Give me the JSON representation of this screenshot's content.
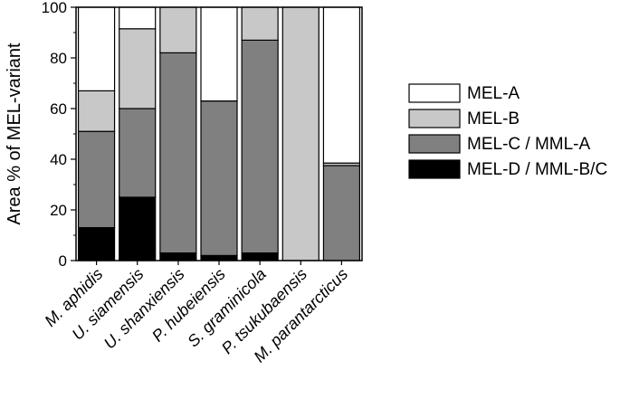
{
  "chart_data": {
    "type": "stacked_bar",
    "title": "",
    "xlabel": "",
    "ylabel": "Area % of MEL-variant",
    "ylim": [
      0,
      100
    ],
    "yticks": [
      0,
      20,
      40,
      60,
      80,
      100
    ],
    "grid": false,
    "legend_position": "right",
    "categories": [
      "M. aphidis",
      "U. siamensis",
      "U. shanxiensis",
      "P. hubeiensis",
      "S. graminicola",
      "P. tsukubaensis",
      "M. parantarcticus"
    ],
    "series": [
      {
        "name": "MEL-D / MML-B/C",
        "color": "#000000",
        "values": [
          13,
          25,
          3,
          2,
          3,
          0,
          0
        ]
      },
      {
        "name": "MEL-C / MML-A",
        "color": "#808080",
        "values": [
          38,
          35,
          79,
          61,
          84,
          0,
          37.5
        ]
      },
      {
        "name": "MEL-B",
        "color": "#c8c8c8",
        "values": [
          16,
          31.5,
          18,
          0,
          13,
          100,
          1
        ]
      },
      {
        "name": "MEL-A",
        "color": "#ffffff",
        "values": [
          33,
          8.5,
          0,
          37,
          0,
          0,
          61.5
        ]
      }
    ],
    "legend_order": [
      "MEL-A",
      "MEL-B",
      "MEL-C / MML-A",
      "MEL-D / MML-B/C"
    ]
  }
}
